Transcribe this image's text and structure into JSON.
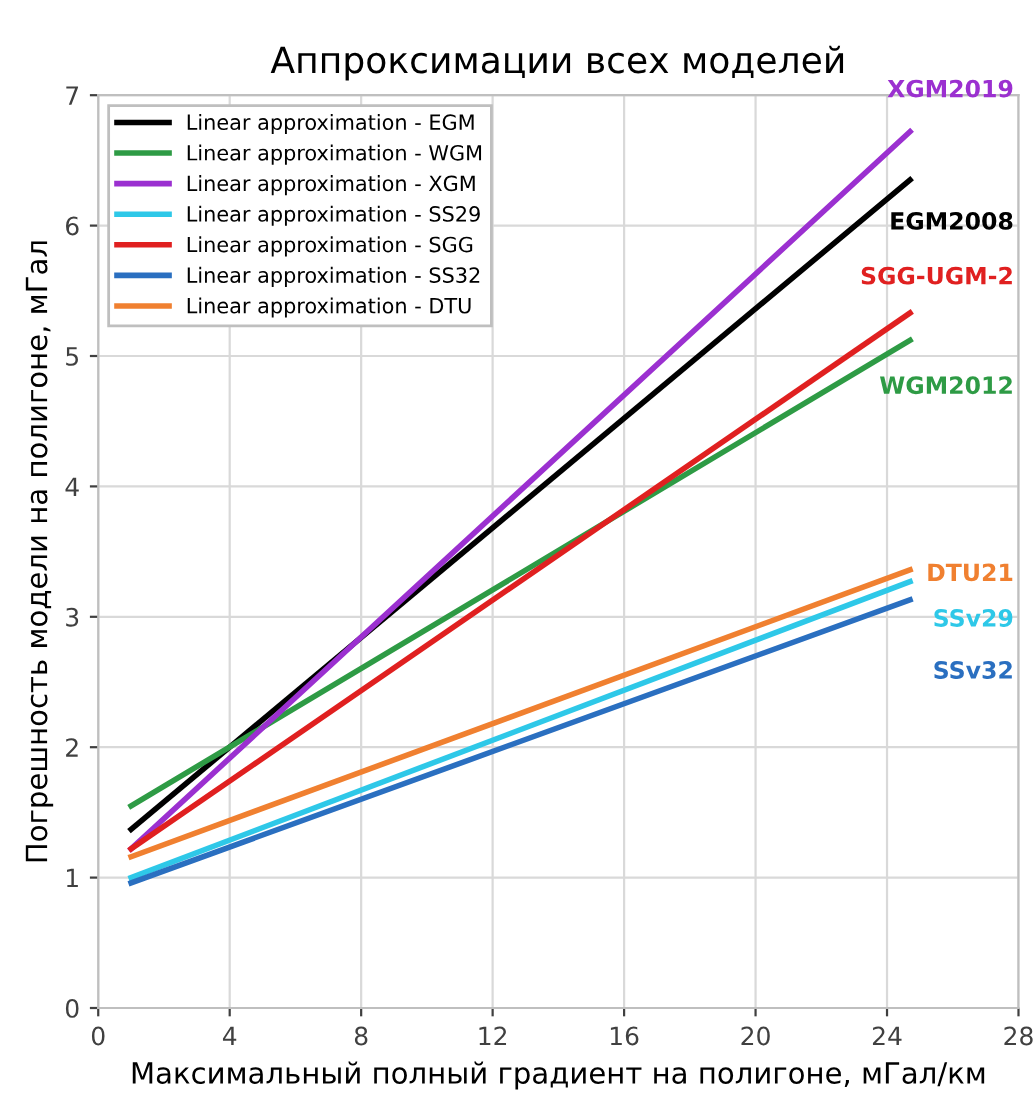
{
  "chart_data": {
    "type": "line",
    "title": "Аппроксимации всех моделей",
    "xlabel": "Максимальный полный градиент на полигоне, мГал/км",
    "ylabel": "Погрешность модели на полигоне, мГал",
    "x": [
      1,
      24.7
    ],
    "series": [
      {
        "name": "Linear approximation - EGM",
        "color": "#000000",
        "values": [
          1.37,
          6.35
        ]
      },
      {
        "name": "Linear approximation - WGM",
        "color": "#2e9b45",
        "values": [
          1.55,
          5.12
        ]
      },
      {
        "name": "Linear approximation - XGM",
        "color": "#9b30d0",
        "values": [
          1.22,
          6.72
        ]
      },
      {
        "name": "Linear approximation - SS29",
        "color": "#2ec8e8",
        "values": [
          1.0,
          3.27
        ]
      },
      {
        "name": "Linear approximation - SGG",
        "color": "#e02020",
        "values": [
          1.22,
          5.33
        ]
      },
      {
        "name": "Linear approximation - SS32",
        "color": "#2a6fc0",
        "values": [
          0.96,
          3.13
        ]
      },
      {
        "name": "Linear approximation - DTU",
        "color": "#f08030",
        "values": [
          1.16,
          3.36
        ]
      }
    ],
    "annotations": [
      "XGM2019",
      "EGM2008",
      "SGG-UGM-2",
      "WGM2012",
      "DTU21",
      "SSv29",
      "SSv32"
    ],
    "xlim": [
      0,
      28
    ],
    "xticks": [
      0,
      4,
      8,
      12,
      16,
      20,
      24,
      28
    ],
    "ylim": [
      0,
      7
    ],
    "yticks": [
      0,
      1,
      2,
      3,
      4,
      5,
      6,
      7
    ],
    "grid": true,
    "legend": "top left",
    "marker": "none",
    "line_style": "solid"
  }
}
